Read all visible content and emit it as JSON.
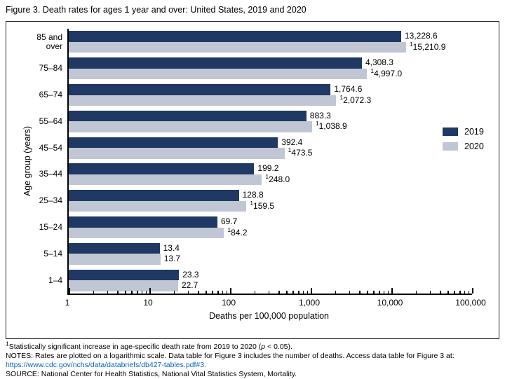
{
  "title": "Figure 3. Death rates for ages 1 year and over: United States, 2019 and 2020",
  "chart_data": {
    "type": "bar",
    "orientation": "horizontal",
    "x_scale": "log",
    "xlim": [
      1,
      100000
    ],
    "xlabel": "Deaths per 100,000 population",
    "ylabel": "Age group (years)",
    "grid": false,
    "legend_position": "right-middle",
    "significance_marker": "1",
    "x_ticks": [
      {
        "value": 1,
        "label": "1"
      },
      {
        "value": 10,
        "label": "10"
      },
      {
        "value": 100,
        "label": "100"
      },
      {
        "value": 1000,
        "label": "1,000"
      },
      {
        "value": 10000,
        "label": "10,000"
      },
      {
        "value": 100000,
        "label": "100,000"
      }
    ],
    "categories": [
      "85 and over",
      "75–84",
      "65–74",
      "55–64",
      "45–54",
      "35–44",
      "25–34",
      "15–24",
      "5–14",
      "1–4"
    ],
    "series": [
      {
        "name": "2019",
        "color": "#1f3864",
        "values": [
          13228.6,
          4308.3,
          1764.6,
          883.3,
          392.4,
          199.2,
          128.8,
          69.7,
          13.4,
          23.3
        ],
        "labels": [
          "13,228.6",
          "4,308.3",
          "1,764.6",
          "883.3",
          "392.4",
          "199.2",
          "128.8",
          "69.7",
          "13.4",
          "23.3"
        ],
        "significant": [
          false,
          false,
          false,
          false,
          false,
          false,
          false,
          false,
          false,
          false
        ]
      },
      {
        "name": "2020",
        "color": "#c0c6d3",
        "values": [
          15210.9,
          4997.0,
          2072.3,
          1038.9,
          473.5,
          248.0,
          159.5,
          84.2,
          13.7,
          22.7
        ],
        "labels": [
          "15,210.9",
          "4,997.0",
          "2,072.3",
          "1,038.9",
          "473.5",
          "248.0",
          "159.5",
          "84.2",
          "13.7",
          "22.7"
        ],
        "significant": [
          true,
          true,
          true,
          true,
          true,
          true,
          true,
          true,
          false,
          false
        ]
      }
    ]
  },
  "footnotes": {
    "significance": {
      "marker": "1",
      "before_italic": "Statistically significant increase in age-specific death rate from 2019 to 2020 (",
      "italic": "p",
      "after_italic": " < 0.05)."
    },
    "notes": "NOTES: Rates are plotted on a logarithmic scale. Data table for Figure 3 includes the number of deaths. Access data table for Figure 3 at:",
    "link": "https://www.cdc.gov/nchs/data/databriefs/db427-tables.pdf#3.",
    "source": "SOURCE: National Center for Health Statistics, National Vital Statistics System, Mortality.",
    "link_color": "#0563c1"
  }
}
